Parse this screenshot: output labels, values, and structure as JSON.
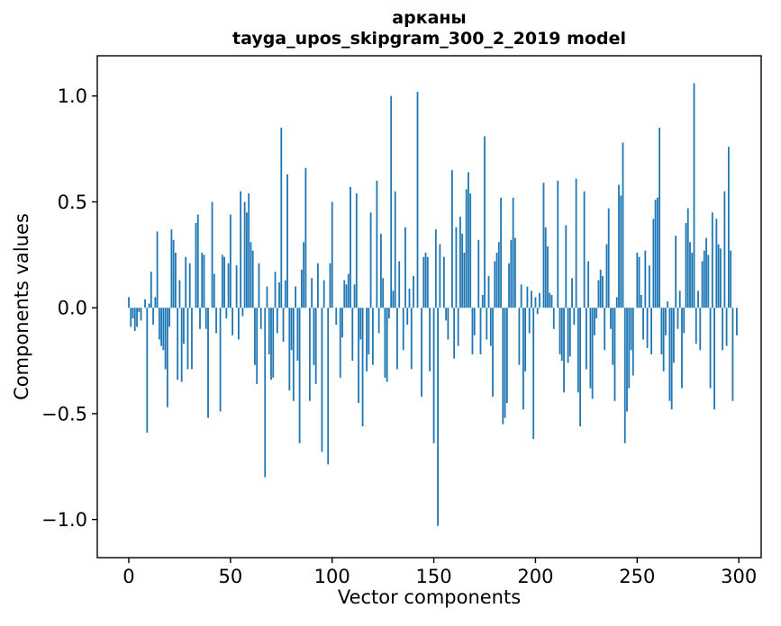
{
  "figure": {
    "title_line1": "арканы",
    "title_line2": "tayga_upos_skipgram_300_2_2019 model",
    "xlabel": "Vector components",
    "ylabel": "Components values"
  },
  "chart_data": {
    "type": "bar",
    "title": "арканы\ntayga_upos_skipgram_300_2_2019 model",
    "xlabel": "Vector components",
    "ylabel": "Components values",
    "bar_color": "#1f77b4",
    "spine_color": "#000000",
    "grid": false,
    "legend": null,
    "n_components": 300,
    "xticks": [
      0,
      50,
      100,
      150,
      200,
      250,
      300
    ],
    "yticks": [
      1.0,
      0.5,
      0.0,
      -0.5,
      -1.0
    ],
    "xlim": [
      -15.5,
      311
    ],
    "ylim": [
      -1.18,
      1.19
    ],
    "values": [
      0.05,
      -0.09,
      -0.05,
      -0.11,
      -0.09,
      -0.02,
      -0.06,
      0,
      0.04,
      -0.59,
      0.02,
      0.17,
      -0.08,
      0.05,
      0.36,
      -0.15,
      -0.18,
      -0.2,
      -0.29,
      -0.47,
      -0.09,
      0.37,
      0.32,
      0.26,
      -0.34,
      0.13,
      -0.35,
      -0.17,
      0.24,
      -0.29,
      0.21,
      -0.29,
      0,
      0.4,
      0.44,
      -0.1,
      0.26,
      0.25,
      -0.1,
      -0.52,
      0,
      0.5,
      0.16,
      -0.12,
      0,
      -0.49,
      0.25,
      0.24,
      -0.05,
      0.21,
      0.44,
      -0.13,
      0,
      0.2,
      -0.15,
      0.55,
      -0.04,
      0.5,
      0.45,
      0.54,
      0.31,
      0.27,
      -0.27,
      -0.36,
      0.21,
      -0.1,
      0,
      -0.8,
      0.1,
      -0.22,
      -0.34,
      -0.33,
      0.17,
      -0.12,
      0.12,
      0.85,
      -0.16,
      0.13,
      0.63,
      -0.39,
      -0.2,
      -0.44,
      0.1,
      -0.25,
      -0.64,
      0.18,
      0.31,
      0.66,
      0,
      -0.44,
      0.14,
      -0.27,
      -0.36,
      0.21,
      0,
      -0.68,
      0.13,
      0,
      -0.74,
      0.21,
      0.5,
      0,
      -0.08,
      0,
      -0.33,
      -0.14,
      0.13,
      0.11,
      0.16,
      0.57,
      -0.25,
      0.11,
      0.54,
      -0.45,
      -0.15,
      -0.56,
      0,
      -0.3,
      -0.22,
      0.45,
      -0.27,
      0,
      0.6,
      -0.12,
      0.35,
      0.14,
      -0.33,
      -0.35,
      -0.05,
      1.0,
      0.08,
      0.55,
      -0.29,
      0.22,
      0,
      -0.2,
      0.38,
      -0.08,
      0.09,
      -0.29,
      0.15,
      0,
      1.02,
      0,
      -0.42,
      0.24,
      0.26,
      0.24,
      -0.3,
      0,
      -0.64,
      0.37,
      -1.03,
      0.3,
      0,
      0.24,
      -0.06,
      -0.15,
      0,
      0.65,
      -0.24,
      0.38,
      -0.18,
      0.43,
      0.35,
      0.26,
      0.56,
      0.64,
      0.54,
      -0.22,
      -0.13,
      0,
      0.32,
      -0.22,
      0.06,
      0.81,
      -0.15,
      0.15,
      -0.18,
      -0.42,
      0.22,
      0.26,
      0.31,
      0.52,
      -0.55,
      -0.52,
      -0.45,
      0.21,
      0.32,
      0.52,
      0.33,
      0,
      -0.27,
      0.11,
      -0.48,
      -0.3,
      0.1,
      -0.12,
      0.08,
      -0.62,
      0.05,
      -0.03,
      0.07,
      0,
      0.59,
      0.38,
      0.29,
      0.07,
      0.06,
      -0.1,
      0,
      0.6,
      -0.22,
      -0.25,
      -0.4,
      0.39,
      -0.26,
      -0.23,
      0.14,
      -0.08,
      0.61,
      -0.4,
      -0.56,
      0,
      0.55,
      -0.29,
      0.22,
      -0.38,
      -0.43,
      -0.13,
      -0.05,
      0.13,
      0.18,
      0.15,
      -0.2,
      0.3,
      0.47,
      -0.1,
      -0.27,
      -0.44,
      0.05,
      0.58,
      0.53,
      0.78,
      -0.64,
      -0.49,
      -0.38,
      -0.2,
      -0.32,
      0,
      0.26,
      0.24,
      0.06,
      -0.15,
      0.27,
      -0.19,
      0.2,
      -0.22,
      0.42,
      0.51,
      0.52,
      0.85,
      -0.22,
      -0.3,
      -0.13,
      0.03,
      -0.44,
      -0.48,
      -0.26,
      0.34,
      -0.1,
      0.08,
      -0.38,
      -0.12,
      0.4,
      0.47,
      0.31,
      0.26,
      1.06,
      -0.17,
      0.08,
      -0.2,
      0.22,
      0.27,
      0.33,
      0.25,
      -0.38,
      0.45,
      -0.48,
      0.42,
      0.3,
      0.28,
      -0.2,
      0.55,
      -0.18,
      0.76,
      0.27,
      -0.44,
      0,
      -0.13
    ]
  }
}
